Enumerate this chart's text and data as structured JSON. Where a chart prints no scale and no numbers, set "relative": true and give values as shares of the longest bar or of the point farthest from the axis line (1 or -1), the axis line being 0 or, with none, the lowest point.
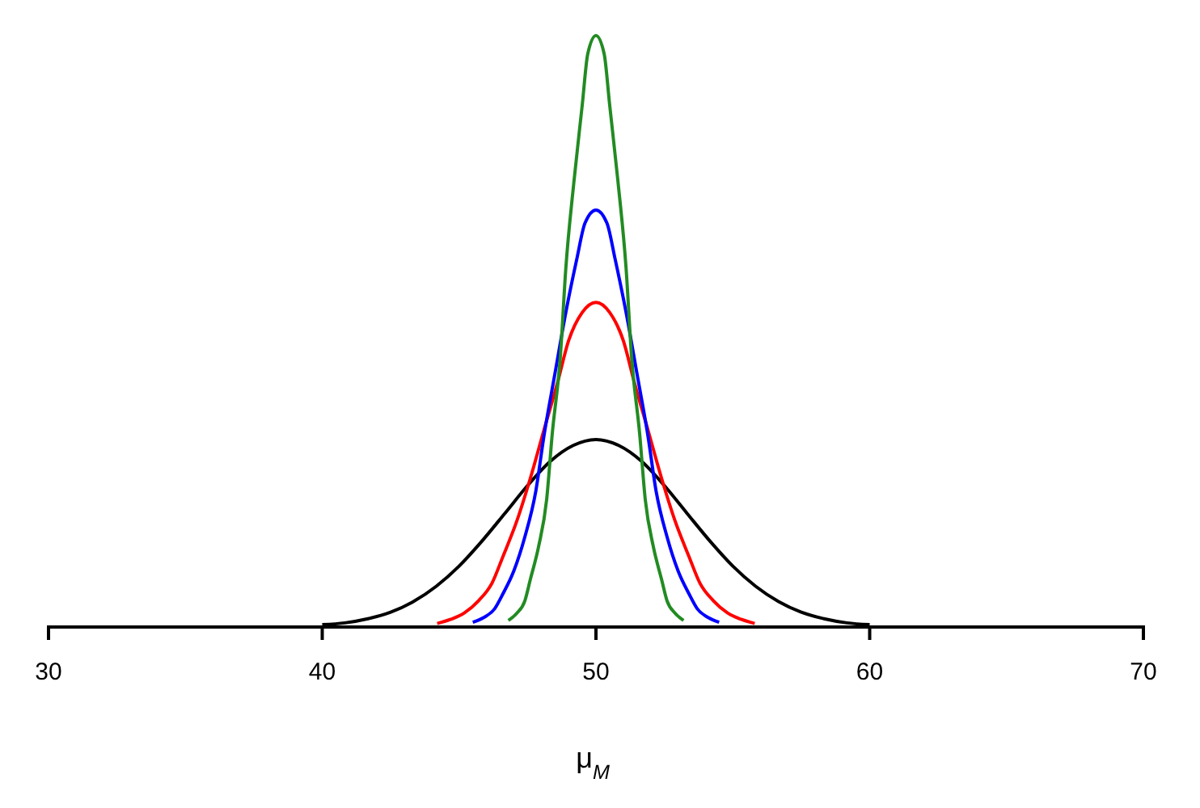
{
  "chart_data": {
    "type": "line",
    "relative": true,
    "xlabel": "μ$_{M}$",
    "xlim": [
      30,
      70
    ],
    "xticks": [
      30,
      40,
      50,
      60,
      70
    ],
    "tick_labels": "x",
    "grid": false,
    "line_style": "solid",
    "marker": "none",
    "series": [
      {
        "color": "#000000",
        "x": [
          40,
          40.83,
          41.67,
          42.5,
          43.33,
          44.17,
          45,
          45.83,
          46.67,
          47.5,
          48.33,
          49.17,
          50,
          50.83,
          51.67,
          52.5,
          53.33,
          54.17,
          55,
          55.83,
          56.67,
          57.5,
          58.33,
          59.17,
          60
        ],
        "values": [
          0.004,
          0.007,
          0.014,
          0.025,
          0.043,
          0.069,
          0.103,
          0.145,
          0.192,
          0.239,
          0.28,
          0.307,
          0.317,
          0.307,
          0.28,
          0.239,
          0.192,
          0.145,
          0.103,
          0.069,
          0.043,
          0.025,
          0.014,
          0.007,
          0.004
        ]
      },
      {
        "color": "#ff0000",
        "x": [
          44.2,
          44.7,
          45.2,
          45.7,
          46.2,
          46.6,
          47.1,
          47.6,
          48.1,
          48.6,
          49.0,
          49.5,
          50,
          50.5,
          51.0,
          51.4,
          51.9,
          52.4,
          52.9,
          53.4,
          53.8,
          54.3,
          54.8,
          55.3,
          55.8
        ],
        "values": [
          0.006,
          0.013,
          0.024,
          0.044,
          0.074,
          0.119,
          0.178,
          0.251,
          0.333,
          0.414,
          0.484,
          0.532,
          0.549,
          0.532,
          0.484,
          0.414,
          0.333,
          0.251,
          0.178,
          0.119,
          0.074,
          0.044,
          0.024,
          0.013,
          0.006
        ]
      },
      {
        "color": "#0000ff",
        "x": [
          45.5,
          45.9,
          46.3,
          46.6,
          47.0,
          47.4,
          47.8,
          48.1,
          48.5,
          48.9,
          49.3,
          49.6,
          50,
          50.4,
          50.7,
          51.1,
          51.5,
          51.9,
          52.2,
          52.6,
          53.0,
          53.4,
          53.7,
          54.1,
          54.5
        ],
        "values": [
          0.008,
          0.016,
          0.031,
          0.056,
          0.095,
          0.152,
          0.229,
          0.323,
          0.428,
          0.532,
          0.622,
          0.683,
          0.705,
          0.683,
          0.622,
          0.532,
          0.428,
          0.323,
          0.229,
          0.152,
          0.095,
          0.056,
          0.031,
          0.016,
          0.008
        ]
      },
      {
        "color": "#228b22",
        "x": [
          46.8,
          47.1,
          47.4,
          47.6,
          47.9,
          48.2,
          48.4,
          48.7,
          48.9,
          49.2,
          49.5,
          49.7,
          50,
          50.3,
          50.5,
          50.8,
          51.1,
          51.3,
          51.6,
          51.8,
          52.1,
          52.4,
          52.6,
          52.9,
          53.2
        ],
        "values": [
          0.011,
          0.023,
          0.044,
          0.08,
          0.135,
          0.216,
          0.325,
          0.458,
          0.607,
          0.755,
          0.883,
          0.969,
          1,
          0.969,
          0.883,
          0.755,
          0.607,
          0.458,
          0.325,
          0.216,
          0.135,
          0.08,
          0.044,
          0.023,
          0.011
        ]
      }
    ]
  }
}
